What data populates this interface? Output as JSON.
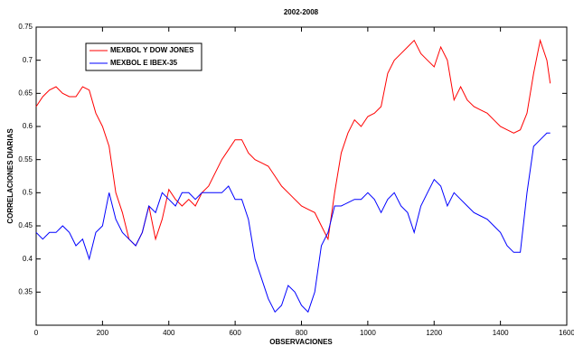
{
  "chart_data": {
    "type": "line",
    "title": "2002-2008",
    "x_label": "OBSERVACIONES",
    "y_label": "CORRELACIONES DIARIAS",
    "x": [
      0,
      20,
      40,
      60,
      80,
      100,
      120,
      140,
      160,
      180,
      200,
      220,
      240,
      260,
      280,
      300,
      320,
      340,
      360,
      380,
      400,
      420,
      440,
      460,
      480,
      500,
      520,
      540,
      560,
      580,
      600,
      620,
      640,
      660,
      680,
      700,
      720,
      740,
      760,
      780,
      800,
      820,
      840,
      860,
      880,
      900,
      920,
      940,
      960,
      980,
      1000,
      1020,
      1040,
      1060,
      1080,
      1100,
      1120,
      1140,
      1160,
      1180,
      1200,
      1220,
      1240,
      1260,
      1280,
      1300,
      1320,
      1340,
      1360,
      1380,
      1400,
      1420,
      1440,
      1460,
      1480,
      1500,
      1520,
      1540,
      1550
    ],
    "series": [
      {
        "name": "MEXBOL Y DOW JONES",
        "color": "#ff0000",
        "values": [
          0.63,
          0.645,
          0.655,
          0.66,
          0.65,
          0.645,
          0.645,
          0.66,
          0.655,
          0.62,
          0.6,
          0.57,
          0.5,
          0.47,
          0.43,
          0.42,
          0.44,
          0.48,
          0.43,
          0.46,
          0.505,
          0.49,
          0.48,
          0.49,
          0.48,
          0.5,
          0.51,
          0.53,
          0.55,
          0.565,
          0.58,
          0.58,
          0.56,
          0.55,
          0.545,
          0.54,
          0.525,
          0.51,
          0.5,
          0.49,
          0.48,
          0.475,
          0.47,
          0.45,
          0.43,
          0.5,
          0.56,
          0.59,
          0.61,
          0.6,
          0.615,
          0.62,
          0.63,
          0.68,
          0.7,
          0.71,
          0.72,
          0.73,
          0.71,
          0.7,
          0.69,
          0.72,
          0.7,
          0.64,
          0.66,
          0.64,
          0.63,
          0.625,
          0.62,
          0.61,
          0.6,
          0.595,
          0.59,
          0.595,
          0.62,
          0.68,
          0.73,
          0.7,
          0.665
        ]
      },
      {
        "name": "MEXBOL E IBEX-35",
        "color": "#0000ff",
        "values": [
          0.44,
          0.43,
          0.44,
          0.44,
          0.45,
          0.44,
          0.42,
          0.43,
          0.4,
          0.44,
          0.45,
          0.5,
          0.46,
          0.44,
          0.43,
          0.42,
          0.44,
          0.48,
          0.47,
          0.5,
          0.49,
          0.48,
          0.5,
          0.5,
          0.49,
          0.5,
          0.5,
          0.5,
          0.5,
          0.51,
          0.49,
          0.49,
          0.46,
          0.4,
          0.37,
          0.34,
          0.32,
          0.33,
          0.36,
          0.35,
          0.33,
          0.32,
          0.35,
          0.42,
          0.44,
          0.48,
          0.48,
          0.485,
          0.49,
          0.49,
          0.5,
          0.49,
          0.47,
          0.49,
          0.5,
          0.48,
          0.47,
          0.44,
          0.48,
          0.5,
          0.52,
          0.51,
          0.48,
          0.5,
          0.49,
          0.48,
          0.47,
          0.465,
          0.46,
          0.45,
          0.44,
          0.42,
          0.41,
          0.41,
          0.5,
          0.57,
          0.58,
          0.59,
          0.59
        ]
      }
    ],
    "xlim": [
      0,
      1600
    ],
    "xticks": [
      0,
      200,
      400,
      600,
      800,
      1000,
      1200,
      1400,
      1600
    ],
    "ylim": [
      0.3,
      0.75
    ],
    "yticks": [
      0.35,
      0.4,
      0.45,
      0.5,
      0.55,
      0.6,
      0.65,
      0.7,
      0.75
    ],
    "legend": "upper left"
  }
}
